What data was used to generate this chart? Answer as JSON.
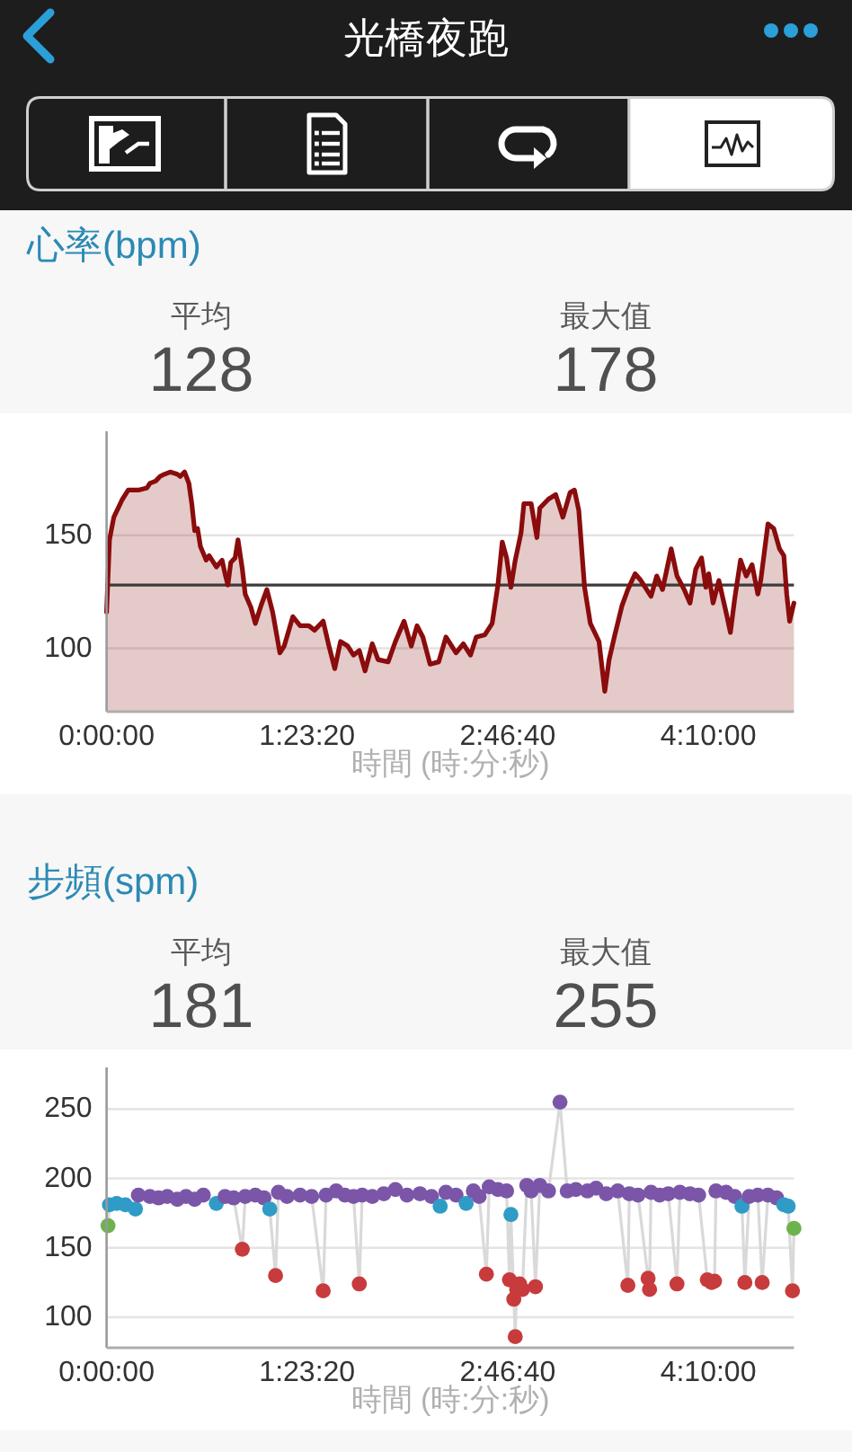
{
  "chart_data": [
    {
      "type": "other",
      "title": "光橋夜跑"
    },
    {
      "type": "area",
      "title": "心率(bpm)",
      "annotations": [
        "平均",
        "128",
        "最大值",
        "178"
      ],
      "xlabel": "時間 (時:分:秒)",
      "x": [
        0.0,
        0.02,
        0.05,
        0.11,
        0.15,
        0.22,
        0.28,
        0.3,
        0.34,
        0.37,
        0.4,
        0.44,
        0.49,
        0.51,
        0.54,
        0.57,
        0.59,
        0.61,
        0.63,
        0.65,
        0.69,
        0.71,
        0.76,
        0.8,
        0.82,
        0.84,
        0.86,
        0.89,
        0.91,
        0.94,
        0.96,
        1.0,
        1.03,
        1.07,
        1.11,
        1.15,
        1.2,
        1.23,
        1.29,
        1.34,
        1.4,
        1.44,
        1.5,
        1.54,
        1.58,
        1.62,
        1.67,
        1.71,
        1.75,
        1.79,
        1.84,
        1.88,
        1.95,
        2.0,
        2.06,
        2.11,
        2.15,
        2.19,
        2.24,
        2.3,
        2.35,
        2.42,
        2.47,
        2.52,
        2.56,
        2.62,
        2.67,
        2.71,
        2.74,
        2.77,
        2.8,
        2.83,
        2.87,
        2.89,
        2.94,
        2.98,
        3.0,
        3.06,
        3.11,
        3.16,
        3.21,
        3.24,
        3.27,
        3.31,
        3.35,
        3.41,
        3.45,
        3.48,
        3.52,
        3.57,
        3.61,
        3.66,
        3.7,
        3.77,
        3.81,
        3.85,
        3.91,
        3.95,
        4.0,
        4.04,
        4.08,
        4.12,
        4.15,
        4.17,
        4.2,
        4.24,
        4.29,
        4.32,
        4.35,
        4.39,
        4.43,
        4.47,
        4.51,
        4.53,
        4.58,
        4.62,
        4.66,
        4.69,
        4.71,
        4.73,
        4.76
      ],
      "series": [
        {
          "color": "#8a0c0c",
          "values": [
            116,
            148,
            158,
            166,
            170,
            170,
            171,
            173,
            174,
            176,
            177,
            178,
            177,
            176,
            178,
            173,
            164,
            152,
            153,
            145,
            139,
            141,
            136,
            139,
            133,
            128,
            138,
            140,
            148,
            135,
            124,
            118,
            111,
            119,
            126,
            116,
            98,
            101,
            114,
            110,
            110,
            108,
            112,
            101,
            91,
            103,
            101,
            97,
            99,
            90,
            102,
            95,
            94,
            103,
            112,
            101,
            110,
            105,
            93,
            94,
            105,
            98,
            102,
            97,
            105,
            106,
            111,
            128,
            147,
            140,
            127,
            139,
            151,
            164,
            164,
            149,
            162,
            166,
            168,
            158,
            169,
            170,
            161,
            127,
            111,
            103,
            81,
            95,
            106,
            119,
            126,
            133,
            130,
            123,
            132,
            126,
            144,
            132,
            126,
            120,
            135,
            140,
            127,
            133,
            120,
            130,
            116,
            107,
            122,
            139,
            132,
            137,
            124,
            130,
            155,
            153,
            144,
            141,
            124,
            112,
            120
          ]
        }
      ],
      "xlim": [
        0,
        4.76
      ],
      "xticks": [
        {
          "value": 0,
          "label": "0:00:00"
        },
        {
          "value": 1.3889,
          "label": "1:23:20"
        },
        {
          "value": 2.7778,
          "label": "2:46:40"
        },
        {
          "value": 4.1667,
          "label": "4:10:00"
        }
      ],
      "ylim": [
        72,
        196
      ],
      "yticks": [
        100,
        150
      ],
      "grid": "y",
      "ref_lines": [
        {
          "axis": "y",
          "value": 128,
          "color": "#3c3c3c"
        }
      ]
    },
    {
      "type": "line",
      "title": "步頻(spm)",
      "annotations": [
        "平均",
        "181",
        "最大值",
        "255"
      ],
      "xlabel": "時間 (時:分:秒)",
      "x": [
        0.01,
        0.02,
        0.07,
        0.13,
        0.2,
        0.22,
        0.3,
        0.36,
        0.42,
        0.49,
        0.55,
        0.61,
        0.67,
        0.76,
        0.82,
        0.88,
        0.94,
        0.96,
        1.03,
        1.09,
        1.13,
        1.17,
        1.19,
        1.25,
        1.34,
        1.42,
        1.5,
        1.52,
        1.59,
        1.65,
        1.71,
        1.75,
        1.77,
        1.84,
        1.92,
        2.0,
        2.08,
        2.17,
        2.25,
        2.31,
        2.35,
        2.42,
        2.49,
        2.54,
        2.58,
        2.63,
        2.65,
        2.71,
        2.77,
        2.79,
        2.8,
        2.82,
        2.83,
        2.84,
        2.86,
        2.88,
        2.91,
        2.94,
        2.97,
        3.0,
        3.06,
        3.14,
        3.19,
        3.25,
        3.33,
        3.39,
        3.46,
        3.54,
        3.61,
        3.62,
        3.68,
        3.75,
        3.76,
        3.77,
        3.83,
        3.89,
        3.95,
        3.97,
        4.04,
        4.1,
        4.16,
        4.19,
        4.21,
        4.22,
        4.29,
        4.35,
        4.4,
        4.42,
        4.45,
        4.51,
        4.54,
        4.58,
        4.64,
        4.69,
        4.72,
        4.75,
        4.76
      ],
      "series": [
        {
          "color": "#d9d9d9",
          "values": [
            166,
            181,
            182,
            181,
            178,
            188,
            187,
            186,
            187,
            185,
            187,
            185,
            188,
            182,
            187,
            186,
            149,
            187,
            188,
            186,
            178,
            130,
            190,
            187,
            188,
            187,
            119,
            188,
            191,
            188,
            187,
            124,
            188,
            187,
            189,
            192,
            188,
            189,
            187,
            180,
            190,
            188,
            182,
            191,
            187,
            131,
            194,
            192,
            191,
            127,
            174,
            113,
            86,
            120,
            124,
            120,
            195,
            191,
            122,
            195,
            191,
            255,
            191,
            192,
            191,
            193,
            189,
            191,
            123,
            189,
            188,
            128,
            120,
            190,
            188,
            189,
            124,
            190,
            189,
            188,
            127,
            125,
            126,
            191,
            190,
            187,
            180,
            125,
            187,
            188,
            125,
            188,
            186,
            181,
            180,
            119,
            164
          ],
          "colors": [
            "#6cb34e",
            "#2e9cc6",
            "#2e9cc6",
            "#2e9cc6",
            "#2e9cc6",
            "#7b56a8",
            "#7b56a8",
            "#7b56a8",
            "#7b56a8",
            "#7b56a8",
            "#7b56a8",
            "#7b56a8",
            "#7b56a8",
            "#2e9cc6",
            "#7b56a8",
            "#7b56a8",
            "#c83b3d",
            "#7b56a8",
            "#7b56a8",
            "#7b56a8",
            "#2e9cc6",
            "#c83b3d",
            "#7b56a8",
            "#7b56a8",
            "#7b56a8",
            "#7b56a8",
            "#c83b3d",
            "#7b56a8",
            "#7b56a8",
            "#7b56a8",
            "#7b56a8",
            "#c83b3d",
            "#7b56a8",
            "#7b56a8",
            "#7b56a8",
            "#7b56a8",
            "#7b56a8",
            "#7b56a8",
            "#7b56a8",
            "#2e9cc6",
            "#7b56a8",
            "#7b56a8",
            "#2e9cc6",
            "#7b56a8",
            "#7b56a8",
            "#c83b3d",
            "#7b56a8",
            "#7b56a8",
            "#7b56a8",
            "#c83b3d",
            "#2e9cc6",
            "#c83b3d",
            "#c83b3d",
            "#c83b3d",
            "#c83b3d",
            "#c83b3d",
            "#7b56a8",
            "#7b56a8",
            "#c83b3d",
            "#7b56a8",
            "#7b56a8",
            "#7b56a8",
            "#7b56a8",
            "#7b56a8",
            "#7b56a8",
            "#7b56a8",
            "#7b56a8",
            "#7b56a8",
            "#c83b3d",
            "#7b56a8",
            "#7b56a8",
            "#c83b3d",
            "#c83b3d",
            "#7b56a8",
            "#7b56a8",
            "#7b56a8",
            "#c83b3d",
            "#7b56a8",
            "#7b56a8",
            "#7b56a8",
            "#c83b3d",
            "#c83b3d",
            "#c83b3d",
            "#7b56a8",
            "#7b56a8",
            "#7b56a8",
            "#2e9cc6",
            "#c83b3d",
            "#7b56a8",
            "#7b56a8",
            "#c83b3d",
            "#7b56a8",
            "#7b56a8",
            "#2e9cc6",
            "#2e9cc6",
            "#c83b3d",
            "#6cb34e"
          ]
        }
      ],
      "marker": "circle",
      "xlim": [
        0,
        4.76
      ],
      "xticks": [
        {
          "value": 0,
          "label": "0:00:00"
        },
        {
          "value": 1.3889,
          "label": "1:23:20"
        },
        {
          "value": 2.7778,
          "label": "2:46:40"
        },
        {
          "value": 4.1667,
          "label": "4:10:00"
        }
      ],
      "ylim": [
        78,
        280
      ],
      "yticks": [
        100,
        150,
        200,
        250
      ],
      "grid": "y"
    }
  ]
}
